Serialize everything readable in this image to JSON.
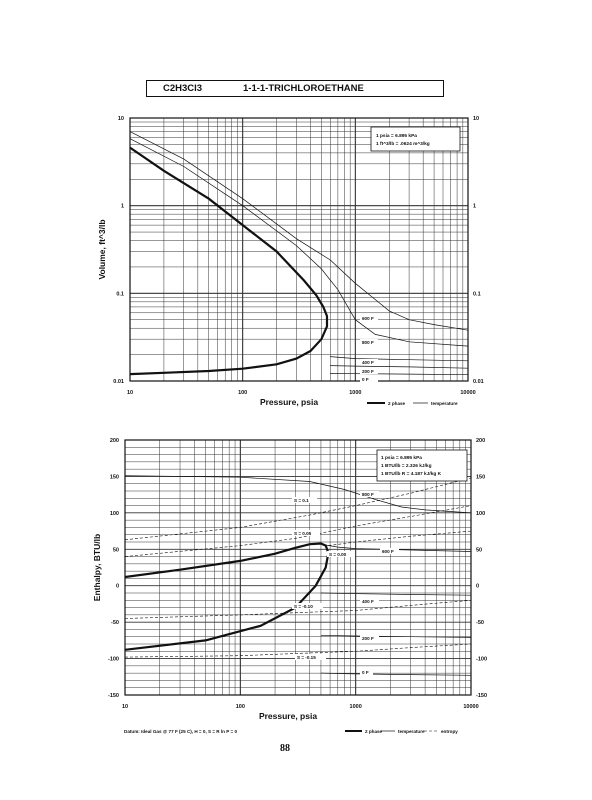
{
  "header": {
    "formula": "C2H3Cl3",
    "name": "1-1-1-TRICHLOROETHANE"
  },
  "page_number": "88",
  "chart_data": [
    {
      "type": "line",
      "xlabel": "Pressure, psia",
      "ylabel": "Volume, ft^3/lb",
      "x_scale": "log",
      "y_scale": "log",
      "xlim": [
        10,
        10000
      ],
      "ylim": [
        0.01,
        10
      ],
      "x_ticks": [
        "10",
        "100",
        "1000",
        "10000"
      ],
      "y_ticks_left": [
        "10",
        "1",
        "0.1",
        "0.01"
      ],
      "y_ticks_right": [
        "10",
        "1",
        "0.1",
        "0.01"
      ],
      "grid": true,
      "notes": [
        "1 psia = 6.895 kPa",
        "1 ft^3/lb = .0624 m^3/kg"
      ],
      "legend": [
        {
          "name": "2 phase",
          "style": "thick"
        },
        {
          "name": "temperature",
          "style": "thin"
        }
      ],
      "series": [
        {
          "name": "2 phase",
          "style": "thick",
          "points": [
            [
              10,
              0.012
            ],
            [
              20,
              0.0124
            ],
            [
              50,
              0.013
            ],
            [
              100,
              0.0138
            ],
            [
              200,
              0.0155
            ],
            [
              300,
              0.018
            ],
            [
              400,
              0.022
            ],
            [
              500,
              0.03
            ],
            [
              560,
              0.042
            ],
            [
              560,
              0.055
            ],
            [
              520,
              0.07
            ],
            [
              450,
              0.095
            ],
            [
              350,
              0.14
            ],
            [
              200,
              0.3
            ],
            [
              100,
              0.6
            ],
            [
              50,
              1.2
            ],
            [
              20,
              2.5
            ],
            [
              10,
              4.6
            ]
          ]
        },
        {
          "temperature": "600 F",
          "points": [
            [
              10,
              5.8
            ],
            [
              30,
              2.8
            ],
            [
              100,
              1.0
            ],
            [
              300,
              0.35
            ],
            [
              500,
              0.19
            ],
            [
              700,
              0.11
            ],
            [
              1000,
              0.05
            ],
            [
              1500,
              0.034
            ],
            [
              3000,
              0.028
            ],
            [
              10000,
              0.025
            ]
          ]
        },
        {
          "temperature": "800 F",
          "points": [
            [
              10,
              7.0
            ],
            [
              30,
              3.4
            ],
            [
              100,
              1.2
            ],
            [
              300,
              0.42
            ],
            [
              600,
              0.24
            ],
            [
              1000,
              0.13
            ],
            [
              1500,
              0.085
            ],
            [
              2000,
              0.063
            ],
            [
              3000,
              0.05
            ],
            [
              5000,
              0.044
            ],
            [
              10000,
              0.038
            ]
          ]
        },
        {
          "temperature": "400 F",
          "points": [
            [
              600,
              0.019
            ],
            [
              1000,
              0.018
            ],
            [
              3000,
              0.0175
            ],
            [
              10000,
              0.017
            ]
          ]
        },
        {
          "temperature": "200 F",
          "points": [
            [
              600,
              0.015
            ],
            [
              1000,
              0.0148
            ],
            [
              3000,
              0.0145
            ],
            [
              10000,
              0.014
            ]
          ]
        },
        {
          "temperature": "0 F",
          "points": [
            [
              600,
              0.0122
            ],
            [
              1000,
              0.0121
            ],
            [
              3000,
              0.012
            ],
            [
              10000,
              0.0118
            ]
          ]
        }
      ],
      "annotations": [
        "600 F",
        "800 F",
        "400 F",
        "200 F",
        "0 F"
      ]
    },
    {
      "type": "line",
      "xlabel": "Pressure, psia",
      "ylabel": "Enthalpy, BTU/lb",
      "x_scale": "log",
      "y_scale": "linear",
      "xlim": [
        10,
        10000
      ],
      "ylim": [
        -150,
        200
      ],
      "x_ticks": [
        "10",
        "100",
        "1000",
        "10000"
      ],
      "y_ticks_left": [
        "200",
        "150",
        "100",
        "50",
        "0",
        "-50",
        "-100",
        "-150"
      ],
      "y_ticks_right": [
        "200",
        "150",
        "100",
        "50",
        "0",
        "-50",
        "-100",
        "-150"
      ],
      "grid": true,
      "notes": [
        "1 psia = 6.895 kPa",
        "1 BTU/lb = 2.326 kJ/kg",
        "1 BTU/lb R = 4.187 kJ/kg K"
      ],
      "legend": [
        {
          "name": "2 phase",
          "style": "thick"
        },
        {
          "name": "temperature",
          "style": "thin"
        },
        {
          "name": "entropy",
          "style": "dashed"
        }
      ],
      "footnote": "Datum: Ideal Gas @ 77 F (25 C), H = 0, S = R ln P = 0",
      "series": [
        {
          "name": "2 phase",
          "style": "thick",
          "points": [
            [
              10,
              12
            ],
            [
              30,
              22
            ],
            [
              100,
              34
            ],
            [
              200,
              44
            ],
            [
              300,
              52
            ],
            [
              400,
              57
            ],
            [
              500,
              58
            ],
            [
              550,
              55
            ],
            [
              580,
              45
            ],
            [
              550,
              25
            ],
            [
              450,
              0
            ],
            [
              300,
              -30
            ],
            [
              150,
              -55
            ],
            [
              50,
              -75
            ],
            [
              10,
              -88
            ]
          ]
        },
        {
          "temperature": "800 F",
          "points": [
            [
              10,
              151
            ],
            [
              100,
              149
            ],
            [
              400,
              143
            ],
            [
              800,
              132
            ],
            [
              1500,
              118
            ],
            [
              2500,
              108
            ],
            [
              4000,
              104
            ],
            [
              10000,
              100
            ]
          ]
        },
        {
          "temperature": "600 F",
          "points": [
            [
              500,
              57
            ],
            [
              700,
              53
            ],
            [
              1000,
              51
            ],
            [
              3000,
              49
            ],
            [
              10000,
              47
            ]
          ]
        },
        {
          "temperature": "400 F",
          "points": [
            [
              500,
              -10
            ],
            [
              1000,
              -11
            ],
            [
              3000,
              -12
            ],
            [
              10000,
              -13
            ]
          ]
        },
        {
          "temperature": "200 F",
          "points": [
            [
              500,
              -68
            ],
            [
              1000,
              -69
            ],
            [
              3000,
              -70
            ],
            [
              10000,
              -71
            ]
          ]
        },
        {
          "temperature": "0 F",
          "points": [
            [
              500,
              -120
            ],
            [
              1000,
              -121
            ],
            [
              3000,
              -122
            ],
            [
              10000,
              -123
            ]
          ]
        },
        {
          "entropy": "S = 0.1",
          "points": [
            [
              10,
              63
            ],
            [
              100,
              80
            ],
            [
              400,
              97
            ],
            [
              1000,
              110
            ],
            [
              3000,
              127
            ],
            [
              10000,
              148
            ]
          ]
        },
        {
          "entropy": "S = 0.05",
          "points": [
            [
              10,
              40
            ],
            [
              100,
              55
            ],
            [
              300,
              65
            ],
            [
              1000,
              82
            ],
            [
              3000,
              95
            ],
            [
              10000,
              110
            ]
          ]
        },
        {
          "entropy": "S = 0.00",
          "points": [
            [
              580,
              55
            ],
            [
              1000,
              60
            ],
            [
              3000,
              68
            ],
            [
              10000,
              75
            ]
          ]
        },
        {
          "entropy": "S = -0.10",
          "points": [
            [
              10,
              -45
            ],
            [
              100,
              -40
            ],
            [
              300,
              -37
            ],
            [
              1000,
              -34
            ],
            [
              3000,
              -27
            ],
            [
              10000,
              -20
            ]
          ]
        },
        {
          "entropy": "S = -0.15",
          "points": [
            [
              10,
              -98
            ],
            [
              100,
              -96
            ],
            [
              300,
              -93
            ],
            [
              1000,
              -90
            ],
            [
              3000,
              -85
            ],
            [
              10000,
              -80
            ]
          ]
        }
      ],
      "annotations": [
        "800 F",
        "600 F",
        "400 F",
        "200 F",
        "0 F",
        "S = 0.1",
        "S = 0.05",
        "S = 0.00",
        "S = -0.10",
        "S = -0.15"
      ]
    }
  ]
}
